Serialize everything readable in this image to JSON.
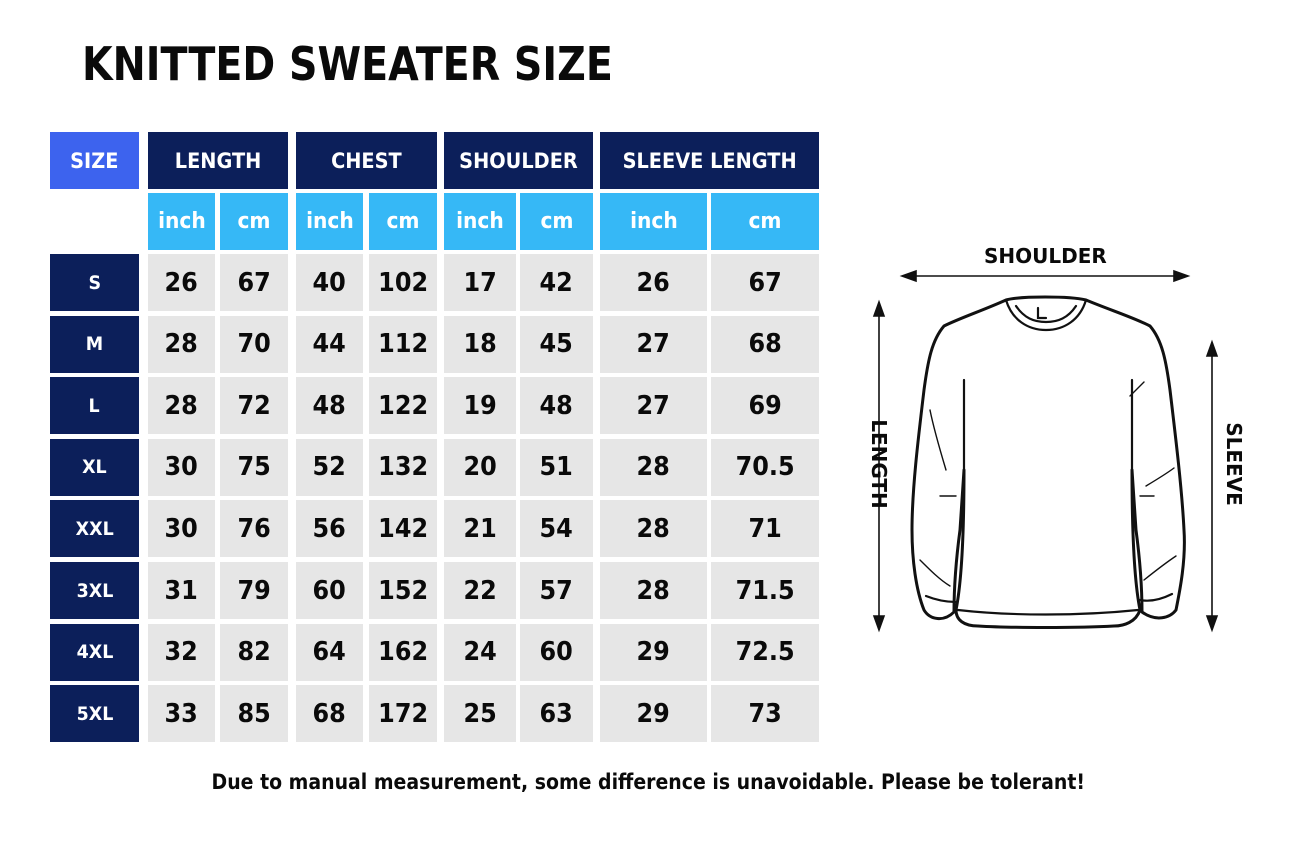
{
  "title": "KNITTED SWEATER SIZE",
  "table": {
    "size_header": "SIZE",
    "groups": [
      {
        "label": "LENGTH",
        "units": [
          "inch",
          "cm"
        ]
      },
      {
        "label": "CHEST",
        "units": [
          "inch",
          "cm"
        ]
      },
      {
        "label": "SHOULDER",
        "units": [
          "inch",
          "cm"
        ]
      },
      {
        "label": "SLEEVE LENGTH",
        "units": [
          "inch",
          "cm"
        ]
      }
    ],
    "rows": [
      {
        "size": "S",
        "values": [
          "26",
          "67",
          "40",
          "102",
          "17",
          "42",
          "26",
          "67"
        ]
      },
      {
        "size": "M",
        "values": [
          "28",
          "70",
          "44",
          "112",
          "18",
          "45",
          "27",
          "68"
        ]
      },
      {
        "size": "L",
        "values": [
          "28",
          "72",
          "48",
          "122",
          "19",
          "48",
          "27",
          "69"
        ]
      },
      {
        "size": "XL",
        "values": [
          "30",
          "75",
          "52",
          "132",
          "20",
          "51",
          "28",
          "70.5"
        ]
      },
      {
        "size": "XXL",
        "values": [
          "30",
          "76",
          "56",
          "142",
          "21",
          "54",
          "28",
          "71"
        ]
      },
      {
        "size": "3XL",
        "values": [
          "31",
          "79",
          "60",
          "152",
          "22",
          "57",
          "28",
          "71.5"
        ]
      },
      {
        "size": "4XL",
        "values": [
          "32",
          "82",
          "64",
          "162",
          "24",
          "60",
          "29",
          "72.5"
        ]
      },
      {
        "size": "5XL",
        "values": [
          "33",
          "85",
          "68",
          "172",
          "25",
          "63",
          "29",
          "73"
        ]
      }
    ]
  },
  "diagram": {
    "shoulder_label": "SHOULDER",
    "length_label": "LENGTH",
    "sleeve_label": "SLEEVE",
    "icon": "sweater-outline-icon"
  },
  "colors": {
    "size_header": "#3d63ee",
    "group_header": "#0c1f5a",
    "unit_header": "#36b8f6",
    "size_label": "#0c1f5a",
    "value_cell": "#e6e6e6"
  },
  "footnote": "Due to manual measurement, some difference is unavoidable. Please be tolerant!"
}
